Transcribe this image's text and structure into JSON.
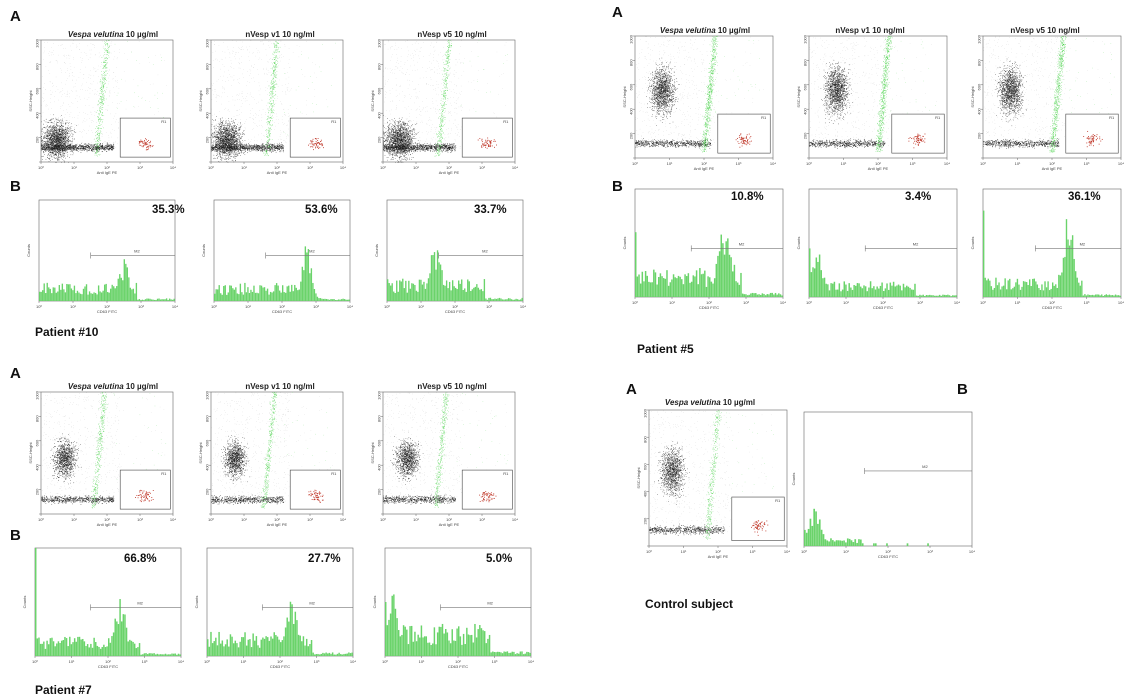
{
  "figure": {
    "panel_labels": {
      "A": "A",
      "B": "B"
    },
    "stim_titles": {
      "vv_species": "Vespa velutina",
      "vv_conc": " 10 µg/ml",
      "v1": "nVesp v1 10 ng/ml",
      "v5": "nVesp v5 10 ng/ml"
    },
    "axes": {
      "dot_x": "Anti IgE PE",
      "dot_y": "SSC-Height",
      "hist_x": "CD63 FITC",
      "hist_y": "Counts"
    },
    "ticks": {
      "x_log": [
        "10⁰",
        "10¹",
        "10²",
        "10³",
        "10⁴"
      ],
      "y_lin": [
        "0",
        "200",
        "400",
        "600",
        "800",
        "1000"
      ]
    },
    "gates": {
      "hist_gate": "M2",
      "dot_gate": "R1"
    },
    "blocks": [
      {
        "patient": "Patient #10",
        "percentages": [
          "35.3%",
          "53.6%",
          "33.7%"
        ]
      },
      {
        "patient": "Patient #5",
        "percentages": [
          "10.8%",
          "3.4%",
          "36.1%"
        ]
      },
      {
        "patient": "Patient #7",
        "percentages": [
          "66.8%",
          "27.7%",
          "5.0%"
        ]
      },
      {
        "patient": "Control subject"
      }
    ],
    "colors": {
      "gated": "#3fcf3f",
      "basophil": "#c0392b",
      "ungated": "#1a1a1a",
      "histogram": "#6ad36a"
    }
  },
  "chart_data": [
    {
      "type": "histogram",
      "subject": "Patient #10",
      "stimulus": "Vespa velutina 10 µg/ml",
      "x_axis": "CD63 FITC",
      "y_axis": "Counts",
      "x_scale": "log",
      "xlim": [
        1,
        10000
      ],
      "gate_percent_positive": 35.3
    },
    {
      "type": "histogram",
      "subject": "Patient #10",
      "stimulus": "nVesp v1 10 ng/ml",
      "x_axis": "CD63 FITC",
      "y_axis": "Counts",
      "x_scale": "log",
      "xlim": [
        1,
        10000
      ],
      "gate_percent_positive": 53.6
    },
    {
      "type": "histogram",
      "subject": "Patient #10",
      "stimulus": "nVesp v5 10 ng/ml",
      "x_axis": "CD63 FITC",
      "y_axis": "Counts",
      "x_scale": "log",
      "xlim": [
        1,
        10000
      ],
      "gate_percent_positive": 33.7
    },
    {
      "type": "histogram",
      "subject": "Patient #5",
      "stimulus": "Vespa velutina 10 µg/ml",
      "x_axis": "CD63 FITC",
      "y_axis": "Counts",
      "x_scale": "log",
      "xlim": [
        1,
        10000
      ],
      "gate_percent_positive": 10.8
    },
    {
      "type": "histogram",
      "subject": "Patient #5",
      "stimulus": "nVesp v1 10 ng/ml",
      "x_axis": "CD63 FITC",
      "y_axis": "Counts",
      "x_scale": "log",
      "xlim": [
        1,
        10000
      ],
      "gate_percent_positive": 3.4
    },
    {
      "type": "histogram",
      "subject": "Patient #5",
      "stimulus": "nVesp v5 10 ng/ml",
      "x_axis": "CD63 FITC",
      "y_axis": "Counts",
      "x_scale": "log",
      "xlim": [
        1,
        10000
      ],
      "gate_percent_positive": 36.1
    },
    {
      "type": "histogram",
      "subject": "Patient #7",
      "stimulus": "Vespa velutina 10 µg/ml",
      "x_axis": "CD63 FITC",
      "y_axis": "Counts",
      "x_scale": "log",
      "xlim": [
        1,
        10000
      ],
      "gate_percent_positive": 66.8
    },
    {
      "type": "histogram",
      "subject": "Patient #7",
      "stimulus": "nVesp v1 10 ng/ml",
      "x_axis": "CD63 FITC",
      "y_axis": "Counts",
      "x_scale": "log",
      "xlim": [
        1,
        10000
      ],
      "gate_percent_positive": 27.7
    },
    {
      "type": "histogram",
      "subject": "Patient #7",
      "stimulus": "nVesp v5 10 ng/ml",
      "x_axis": "CD63 FITC",
      "y_axis": "Counts",
      "x_scale": "log",
      "xlim": [
        1,
        10000
      ],
      "gate_percent_positive": 5.0
    },
    {
      "type": "scatter",
      "subject": "All",
      "x_axis": "Anti IgE PE",
      "y_axis": "SSC-Height",
      "x_scale": "log",
      "xlim": [
        1,
        10000
      ],
      "ylim": [
        0,
        1000
      ]
    }
  ]
}
